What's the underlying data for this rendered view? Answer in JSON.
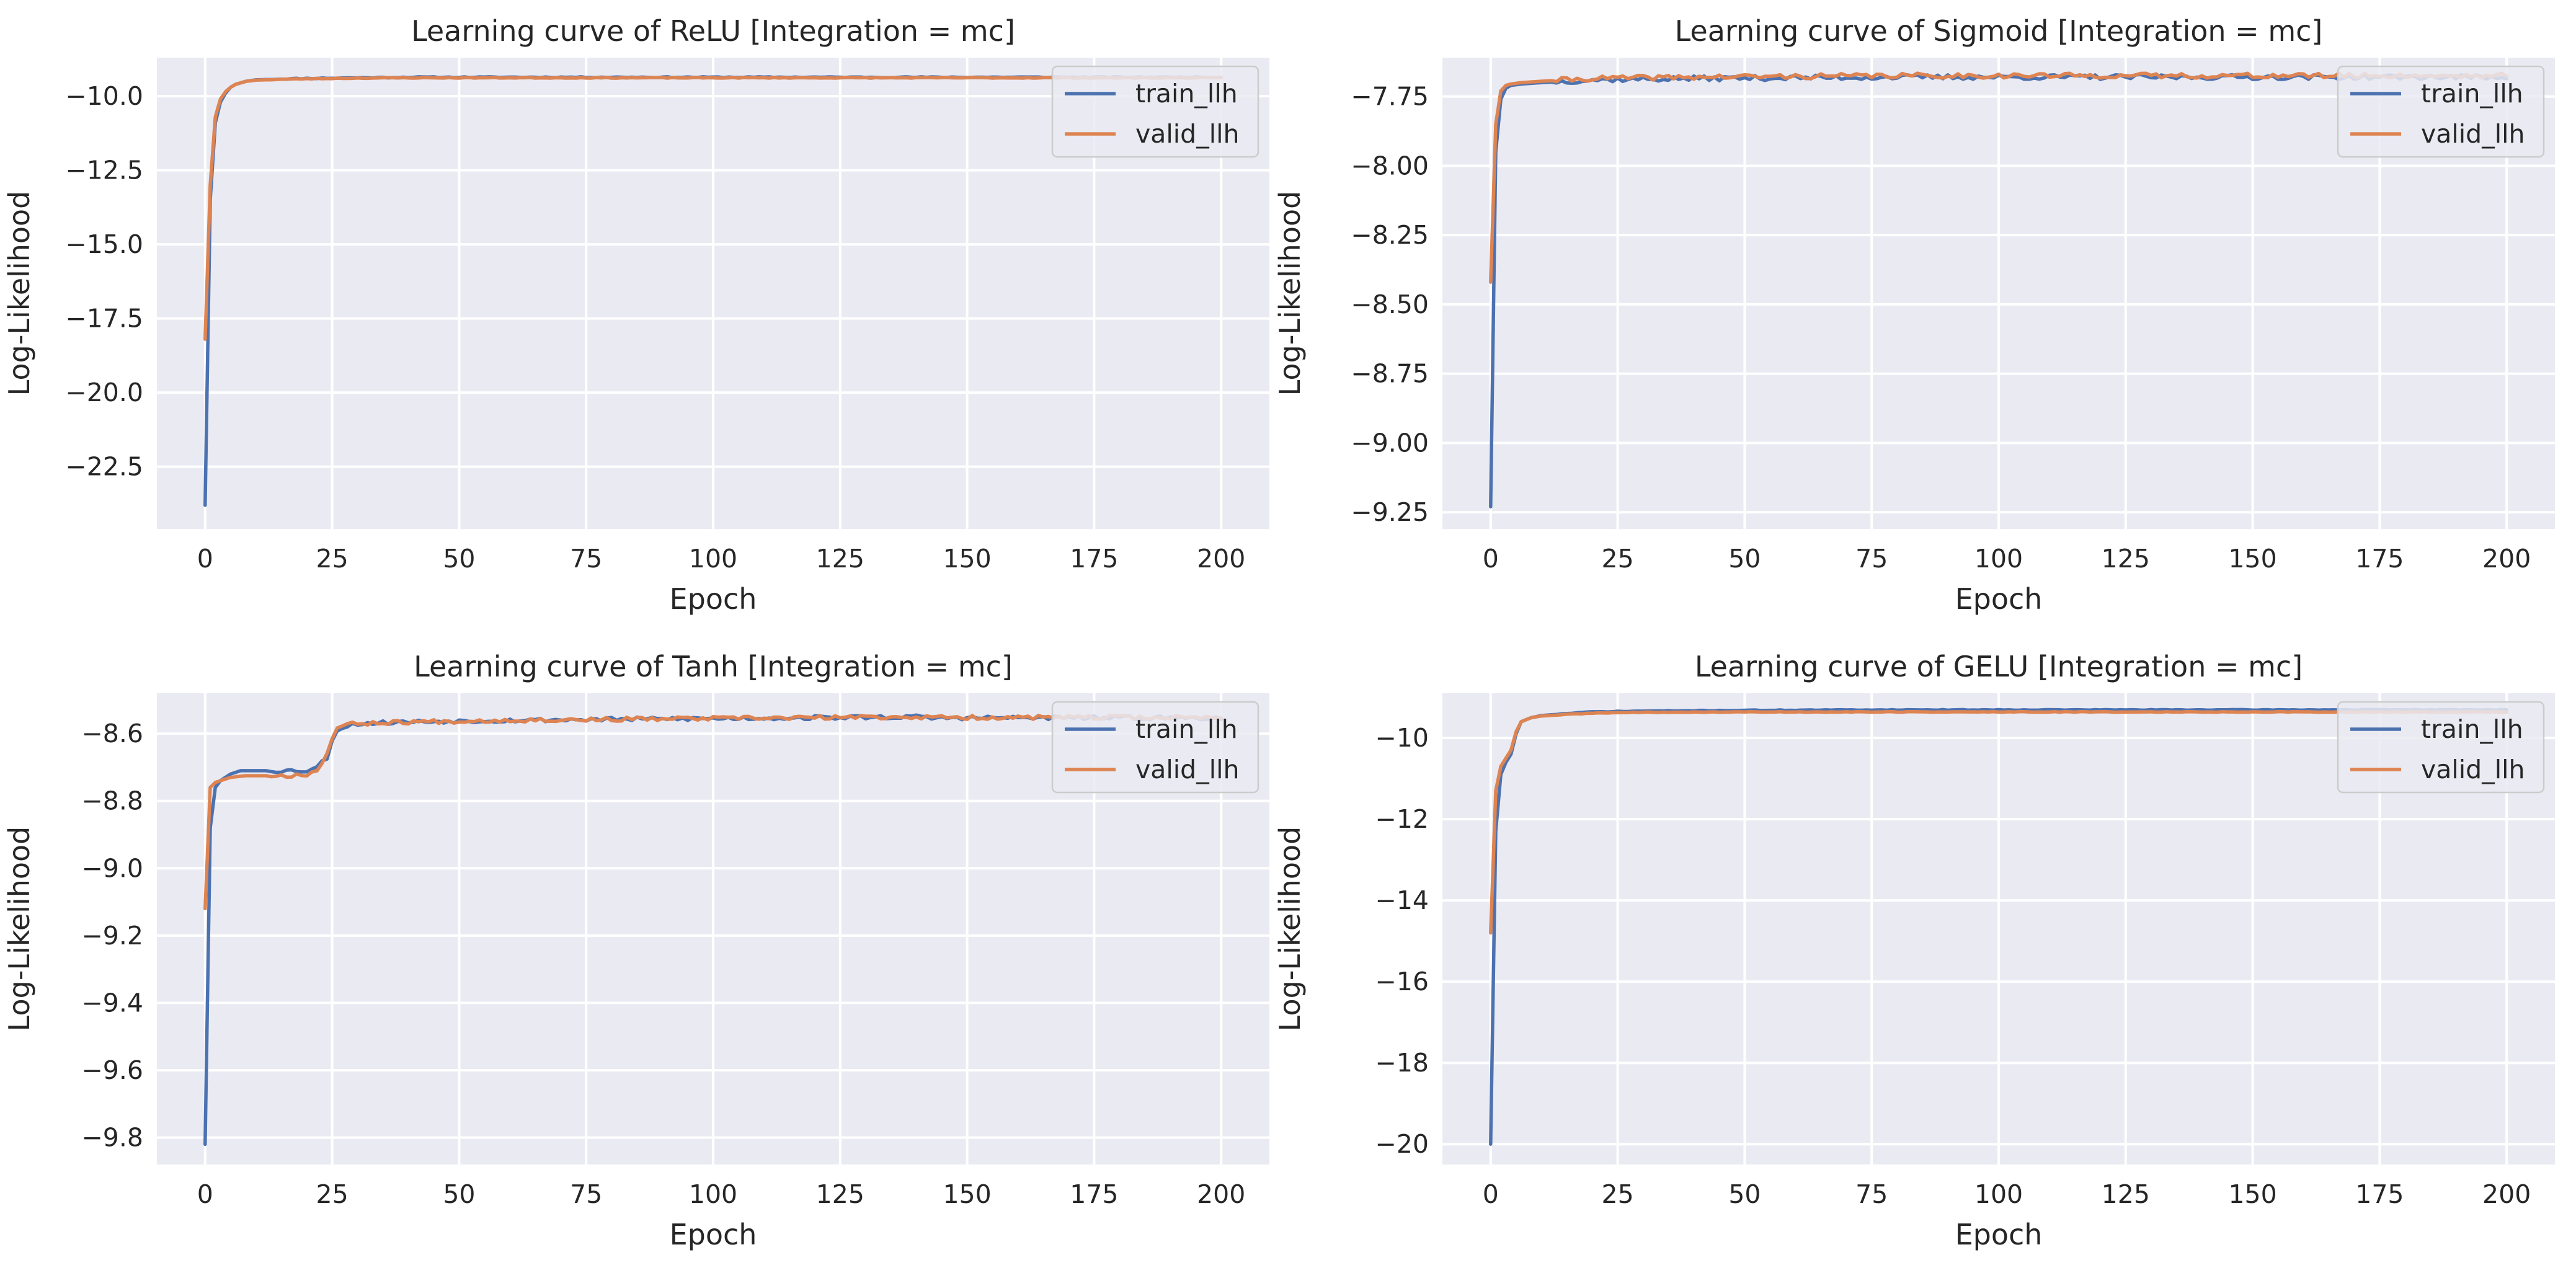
{
  "style": {
    "axes_background": "#eaeaf2",
    "grid_color": "#ffffff",
    "text_color": "#262626",
    "legend_frame": "#cccccc"
  },
  "chart_data": [
    {
      "type": "line",
      "title": "Learning curve of ReLU [Integration = mc]",
      "xlabel": "Epoch",
      "ylabel": "Log-Likelihood",
      "xlim": [
        -9.5,
        209.5
      ],
      "ylim": [
        -24.6,
        -8.7
      ],
      "xticks": [
        0,
        25,
        50,
        75,
        100,
        125,
        150,
        175,
        200
      ],
      "xtick_labels": [
        "0",
        "25",
        "50",
        "75",
        "100",
        "125",
        "150",
        "175",
        "200"
      ],
      "yticks": [
        -22.5,
        -20.0,
        -17.5,
        -15.0,
        -12.5,
        -10.0
      ],
      "ytick_labels": [
        "−22.5",
        "−20.0",
        "−17.5",
        "−15.0",
        "−12.5",
        "−10.0"
      ],
      "grid": true,
      "legend": "top-right",
      "n_epochs": 200,
      "series": [
        {
          "name": "train_llh",
          "color": "#4c72b0",
          "start": [
            [
              0,
              -23.8
            ],
            [
              1,
              -13.5
            ],
            [
              2,
              -10.9
            ],
            [
              3,
              -10.2
            ],
            [
              4,
              -9.9
            ],
            [
              5,
              -9.7
            ],
            [
              6,
              -9.6
            ],
            [
              8,
              -9.5
            ],
            [
              10,
              -9.45
            ],
            [
              15,
              -9.42
            ],
            [
              20,
              -9.4
            ],
            [
              30,
              -9.38
            ],
            [
              40,
              -9.36
            ],
            [
              60,
              -9.36
            ],
            [
              80,
              -9.36
            ]
          ],
          "plateau": -9.36,
          "noise": 0.015,
          "seed": 11
        },
        {
          "name": "valid_llh",
          "color": "#dd8452",
          "start": [
            [
              0,
              -18.2
            ],
            [
              1,
              -13.0
            ],
            [
              2,
              -10.7
            ],
            [
              3,
              -10.1
            ],
            [
              4,
              -9.85
            ],
            [
              5,
              -9.7
            ],
            [
              6,
              -9.6
            ],
            [
              8,
              -9.5
            ],
            [
              10,
              -9.46
            ],
            [
              15,
              -9.43
            ],
            [
              20,
              -9.41
            ],
            [
              30,
              -9.39
            ],
            [
              40,
              -9.38
            ],
            [
              60,
              -9.38
            ],
            [
              80,
              -9.38
            ]
          ],
          "plateau": -9.38,
          "noise": 0.012,
          "seed": 23
        }
      ]
    },
    {
      "type": "line",
      "title": "Learning curve of Sigmoid [Integration = mc]",
      "xlabel": "Epoch",
      "ylabel": "Log-Likelihood",
      "xlim": [
        -9.5,
        209.5
      ],
      "ylim": [
        -9.31,
        -7.61
      ],
      "xticks": [
        0,
        25,
        50,
        75,
        100,
        125,
        150,
        175,
        200
      ],
      "xtick_labels": [
        "0",
        "25",
        "50",
        "75",
        "100",
        "125",
        "150",
        "175",
        "200"
      ],
      "yticks": [
        -9.25,
        -9.0,
        -8.75,
        -8.5,
        -8.25,
        -8.0,
        -7.75
      ],
      "ytick_labels": [
        "−9.25",
        "−9.00",
        "−8.75",
        "−8.50",
        "−8.25",
        "−8.00",
        "−7.75"
      ],
      "grid": true,
      "legend": "top-right",
      "n_epochs": 200,
      "series": [
        {
          "name": "train_llh",
          "color": "#4c72b0",
          "start": [
            [
              0,
              -9.23
            ],
            [
              1,
              -7.95
            ],
            [
              2,
              -7.76
            ],
            [
              3,
              -7.72
            ],
            [
              4,
              -7.71
            ],
            [
              6,
              -7.705
            ],
            [
              10,
              -7.7
            ],
            [
              20,
              -7.69
            ],
            [
              40,
              -7.685
            ],
            [
              80,
              -7.68
            ]
          ],
          "plateau": -7.68,
          "noise": 0.009,
          "seed": 37
        },
        {
          "name": "valid_llh",
          "color": "#dd8452",
          "start": [
            [
              0,
              -8.42
            ],
            [
              1,
              -7.85
            ],
            [
              2,
              -7.73
            ],
            [
              3,
              -7.71
            ],
            [
              4,
              -7.705
            ],
            [
              6,
              -7.7
            ],
            [
              10,
              -7.695
            ],
            [
              20,
              -7.685
            ],
            [
              40,
              -7.68
            ],
            [
              80,
              -7.675
            ]
          ],
          "plateau": -7.675,
          "noise": 0.009,
          "seed": 41
        }
      ]
    },
    {
      "type": "line",
      "title": "Learning curve of Tanh [Integration = mc]",
      "xlabel": "Epoch",
      "ylabel": "Log-Likelihood",
      "xlim": [
        -9.5,
        209.5
      ],
      "ylim": [
        -9.88,
        -8.48
      ],
      "xticks": [
        0,
        25,
        50,
        75,
        100,
        125,
        150,
        175,
        200
      ],
      "xtick_labels": [
        "0",
        "25",
        "50",
        "75",
        "100",
        "125",
        "150",
        "175",
        "200"
      ],
      "yticks": [
        -9.8,
        -9.6,
        -9.4,
        -9.2,
        -9.0,
        -8.8,
        -8.6
      ],
      "ytick_labels": [
        "−9.8",
        "−9.6",
        "−9.4",
        "−9.2",
        "−9.0",
        "−8.8",
        "−8.6"
      ],
      "grid": true,
      "legend": "top-right",
      "n_epochs": 200,
      "series": [
        {
          "name": "train_llh",
          "color": "#4c72b0",
          "start": [
            [
              0,
              -9.82
            ],
            [
              1,
              -8.88
            ],
            [
              2,
              -8.76
            ],
            [
              3,
              -8.74
            ],
            [
              4,
              -8.73
            ],
            [
              5,
              -8.72
            ],
            [
              7,
              -8.71
            ],
            [
              10,
              -8.71
            ],
            [
              15,
              -8.71
            ],
            [
              20,
              -8.71
            ],
            [
              22,
              -8.7
            ],
            [
              24,
              -8.67
            ],
            [
              25,
              -8.62
            ],
            [
              26,
              -8.59
            ],
            [
              27,
              -8.58
            ],
            [
              30,
              -8.57
            ],
            [
              40,
              -8.565
            ],
            [
              60,
              -8.56
            ],
            [
              100,
              -8.555
            ],
            [
              140,
              -8.55
            ]
          ],
          "plateau": -8.553,
          "noise": 0.006,
          "seed": 53
        },
        {
          "name": "valid_llh",
          "color": "#dd8452",
          "start": [
            [
              0,
              -9.12
            ],
            [
              1,
              -8.76
            ],
            [
              2,
              -8.745
            ],
            [
              3,
              -8.74
            ],
            [
              5,
              -8.73
            ],
            [
              8,
              -8.725
            ],
            [
              12,
              -8.725
            ],
            [
              16,
              -8.725
            ],
            [
              20,
              -8.72
            ],
            [
              22,
              -8.71
            ],
            [
              24,
              -8.66
            ],
            [
              25,
              -8.61
            ],
            [
              26,
              -8.585
            ],
            [
              27,
              -8.575
            ],
            [
              30,
              -8.57
            ],
            [
              40,
              -8.565
            ],
            [
              60,
              -8.56
            ],
            [
              100,
              -8.555
            ],
            [
              140,
              -8.55
            ]
          ],
          "plateau": -8.552,
          "noise": 0.006,
          "seed": 67
        }
      ]
    },
    {
      "type": "line",
      "title": "Learning curve of GELU [Integration = mc]",
      "xlabel": "Epoch",
      "ylabel": "Log-Likelihood",
      "xlim": [
        -9.5,
        209.5
      ],
      "ylim": [
        -20.5,
        -8.9
      ],
      "xticks": [
        0,
        25,
        50,
        75,
        100,
        125,
        150,
        175,
        200
      ],
      "xtick_labels": [
        "0",
        "25",
        "50",
        "75",
        "100",
        "125",
        "150",
        "175",
        "200"
      ],
      "yticks": [
        -20,
        -18,
        -16,
        -14,
        -12,
        -10
      ],
      "ytick_labels": [
        "−20",
        "−18",
        "−16",
        "−14",
        "−12",
        "−10"
      ],
      "grid": true,
      "legend": "top-right",
      "n_epochs": 200,
      "series": [
        {
          "name": "train_llh",
          "color": "#4c72b0",
          "start": [
            [
              0,
              -20.0
            ],
            [
              1,
              -12.3
            ],
            [
              2,
              -10.9
            ],
            [
              3,
              -10.6
            ],
            [
              4,
              -10.4
            ],
            [
              5,
              -9.9
            ],
            [
              6,
              -9.6
            ],
            [
              8,
              -9.5
            ],
            [
              10,
              -9.45
            ],
            [
              15,
              -9.4
            ],
            [
              20,
              -9.36
            ],
            [
              30,
              -9.34
            ],
            [
              50,
              -9.32
            ],
            [
              80,
              -9.31
            ],
            [
              120,
              -9.31
            ]
          ],
          "plateau": -9.31,
          "noise": 0.008,
          "seed": 71
        },
        {
          "name": "valid_llh",
          "color": "#dd8452",
          "start": [
            [
              0,
              -14.8
            ],
            [
              1,
              -11.3
            ],
            [
              2,
              -10.7
            ],
            [
              3,
              -10.5
            ],
            [
              4,
              -10.3
            ],
            [
              5,
              -9.85
            ],
            [
              6,
              -9.6
            ],
            [
              8,
              -9.5
            ],
            [
              10,
              -9.46
            ],
            [
              15,
              -9.42
            ],
            [
              20,
              -9.39
            ],
            [
              30,
              -9.37
            ],
            [
              50,
              -9.36
            ],
            [
              80,
              -9.36
            ],
            [
              120,
              -9.36
            ]
          ],
          "plateau": -9.36,
          "noise": 0.007,
          "seed": 89
        }
      ]
    }
  ]
}
